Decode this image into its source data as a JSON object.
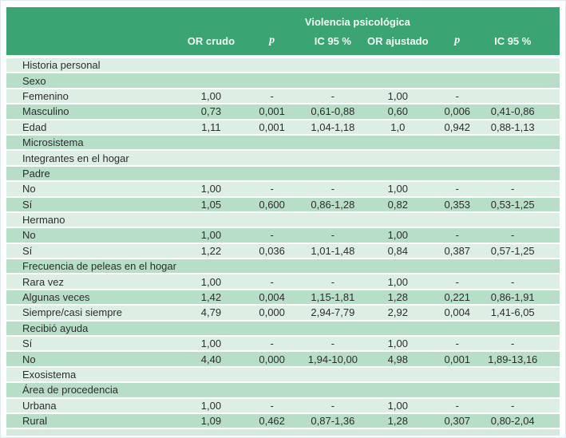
{
  "table": {
    "title": "Violencia psicológica",
    "columns": [
      "OR crudo",
      "p",
      "IC 95 %",
      "OR ajustado",
      "p",
      "IC 95 %"
    ],
    "rows": [
      {
        "label": "Historia personal",
        "values": [
          "",
          "",
          "",
          "",
          "",
          ""
        ]
      },
      {
        "label": "Sexo",
        "values": [
          "",
          "",
          "",
          "",
          "",
          ""
        ]
      },
      {
        "label": "Femenino",
        "values": [
          "1,00",
          "-",
          "-",
          "1,00",
          "-",
          ""
        ]
      },
      {
        "label": "Masculino",
        "values": [
          "0,73",
          "0,001",
          "0,61-0,88",
          "0,60",
          "0,006",
          "0,41-0,86"
        ]
      },
      {
        "label": "Edad",
        "values": [
          "1,11",
          "0,001",
          "1,04-1,18",
          "1,0",
          "0,942",
          "0,88-1,13"
        ]
      },
      {
        "label": "Microsistema",
        "values": [
          "",
          "",
          "",
          "",
          "",
          ""
        ]
      },
      {
        "label": "Integrantes en el hogar",
        "values": [
          "",
          "",
          "",
          "",
          "",
          ""
        ]
      },
      {
        "label": "Padre",
        "values": [
          "",
          "",
          "",
          "",
          "",
          ""
        ]
      },
      {
        "label": "No",
        "values": [
          "1,00",
          "-",
          "-",
          "1,00",
          "-",
          "-"
        ]
      },
      {
        "label": "Sí",
        "values": [
          "1,05",
          "0,600",
          "0,86-1,28",
          "0,82",
          "0,353",
          "0,53-1,25"
        ]
      },
      {
        "label": "Hermano",
        "values": [
          "",
          "",
          "",
          "",
          "",
          ""
        ]
      },
      {
        "label": "No",
        "values": [
          "1,00",
          "-",
          "-",
          "1,00",
          "-",
          "-"
        ]
      },
      {
        "label": "Sí",
        "values": [
          "1,22",
          "0,036",
          "1,01-1,48",
          "0,84",
          "0,387",
          "0,57-1,25"
        ]
      },
      {
        "label": "Frecuencia de peleas en el hogar",
        "values": [
          "",
          "",
          "",
          "",
          "",
          ""
        ]
      },
      {
        "label": "Rara vez",
        "values": [
          "1,00",
          "-",
          "-",
          "1,00",
          "-",
          "-"
        ]
      },
      {
        "label": "Algunas veces",
        "values": [
          "1,42",
          "0,004",
          "1,15-1,81",
          "1,28",
          "0,221",
          "0,86-1,91"
        ]
      },
      {
        "label": "Siempre/casi siempre",
        "values": [
          "4,79",
          "0,000",
          "2,94-7,79",
          "2,92",
          "0,004",
          "1,41-6,05"
        ]
      },
      {
        "label": "Recibió ayuda",
        "values": [
          "",
          "",
          "",
          "",
          "",
          ""
        ]
      },
      {
        "label": "Sí",
        "values": [
          "1,00",
          "-",
          "-",
          "1,00",
          "-",
          "-"
        ]
      },
      {
        "label": "No",
        "values": [
          "4,40",
          "0,000",
          "1,94-10,00",
          "4,98",
          "0,001",
          "1,89-13,16"
        ]
      },
      {
        "label": "Exosistema",
        "values": [
          "",
          "",
          "",
          "",
          "",
          ""
        ]
      },
      {
        "label": "Área de procedencia",
        "values": [
          "",
          "",
          "",
          "",
          "",
          ""
        ]
      },
      {
        "label": "Urbana",
        "values": [
          "1,00",
          "-",
          "-",
          "1,00",
          "-",
          "-"
        ]
      },
      {
        "label": "Rural",
        "values": [
          "1,09",
          "0,462",
          "0,87-1,36",
          "1,28",
          "0,307",
          "0,80-2,04"
        ]
      }
    ],
    "colors": {
      "header_green": "#3aa572",
      "row_dark": "#b7dfc7",
      "row_pale": "#ddefe5",
      "text": "#2d2d2d",
      "header_text": "#f6fcf8"
    }
  }
}
